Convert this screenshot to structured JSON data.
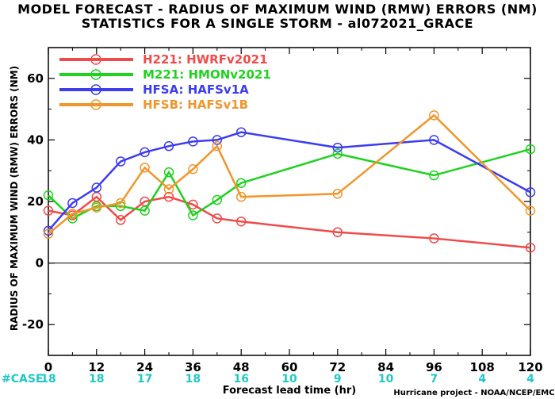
{
  "chart_data": {
    "type": "line",
    "title": "MODEL FORECAST - RADIUS OF MAXIMUM WIND (RMW) ERRORS (NM)",
    "subtitle": "STATISTICS FOR A SINGLE STORM - al072021_GRACE",
    "xlabel": "Forecast lead time (hr)",
    "ylabel": "RADIUS OF MAXIMUM WIND (RMW) ERRORS (NM)",
    "xlim": [
      0,
      120
    ],
    "ylim": [
      -30,
      70
    ],
    "x_ticks": [
      0,
      12,
      24,
      36,
      48,
      60,
      72,
      84,
      96,
      108,
      120
    ],
    "y_ticks": [
      -20,
      0,
      20,
      40,
      60
    ],
    "case_label": "#CASE",
    "case_counts": [
      18,
      18,
      17,
      18,
      16,
      10,
      9,
      10,
      7,
      4,
      4
    ],
    "legend_position": "top-left",
    "credit": "Hurricane project - NOAA/NCEP/EMC",
    "series": [
      {
        "name": "H221: HWRFv2021",
        "color": "#f04a4a",
        "x": [
          0,
          6,
          12,
          18,
          24,
          30,
          36,
          42,
          48,
          72,
          96,
          120
        ],
        "values": [
          17,
          15.5,
          21.5,
          14,
          20,
          21.5,
          19,
          14.5,
          13.5,
          10,
          8,
          5
        ]
      },
      {
        "name": "M221: HMONv2021",
        "color": "#1ed21e",
        "x": [
          0,
          6,
          12,
          18,
          24,
          30,
          36,
          42,
          48,
          72,
          96,
          120
        ],
        "values": [
          22,
          14.5,
          18.5,
          18.5,
          17,
          29.5,
          15.5,
          20.5,
          26,
          35.5,
          28.5,
          37
        ]
      },
      {
        "name": "HFSA: HAFSv1A",
        "color": "#3c3cf0",
        "x": [
          0,
          6,
          12,
          18,
          24,
          30,
          36,
          42,
          48,
          72,
          96,
          120
        ],
        "values": [
          10.5,
          19.5,
          24.5,
          33,
          36,
          38,
          39.5,
          40,
          42.5,
          37.5,
          40,
          23
        ]
      },
      {
        "name": "HFSB: HAFSv1B",
        "color": "#f0962d",
        "x": [
          0,
          6,
          12,
          18,
          24,
          30,
          36,
          42,
          48,
          72,
          96,
          120
        ],
        "values": [
          9.5,
          16,
          18,
          19.5,
          31,
          24,
          30.5,
          38,
          21.5,
          22.5,
          48,
          17
        ]
      }
    ]
  }
}
